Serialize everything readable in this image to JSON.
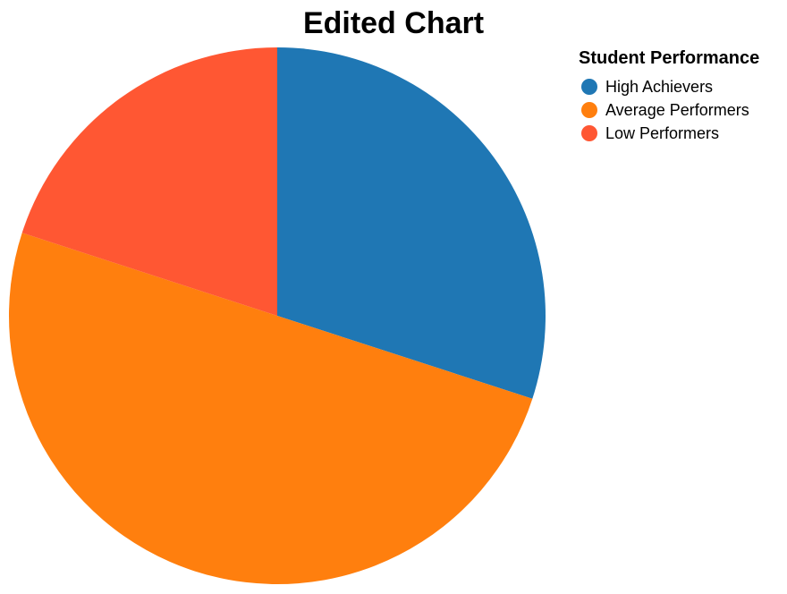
{
  "chart_data": {
    "type": "pie",
    "title": "Edited Chart",
    "legend_title": "Student Performance",
    "legend_position": "top-right",
    "start_angle_deg": 0,
    "direction": "clockwise",
    "slices": [
      {
        "label": "High Achievers",
        "value": 30,
        "color": "#1f77b4"
      },
      {
        "label": "Average Performers",
        "value": 50,
        "color": "#ff7f0e"
      },
      {
        "label": "Low Performers",
        "value": 20,
        "color": "#ff5733"
      }
    ]
  }
}
